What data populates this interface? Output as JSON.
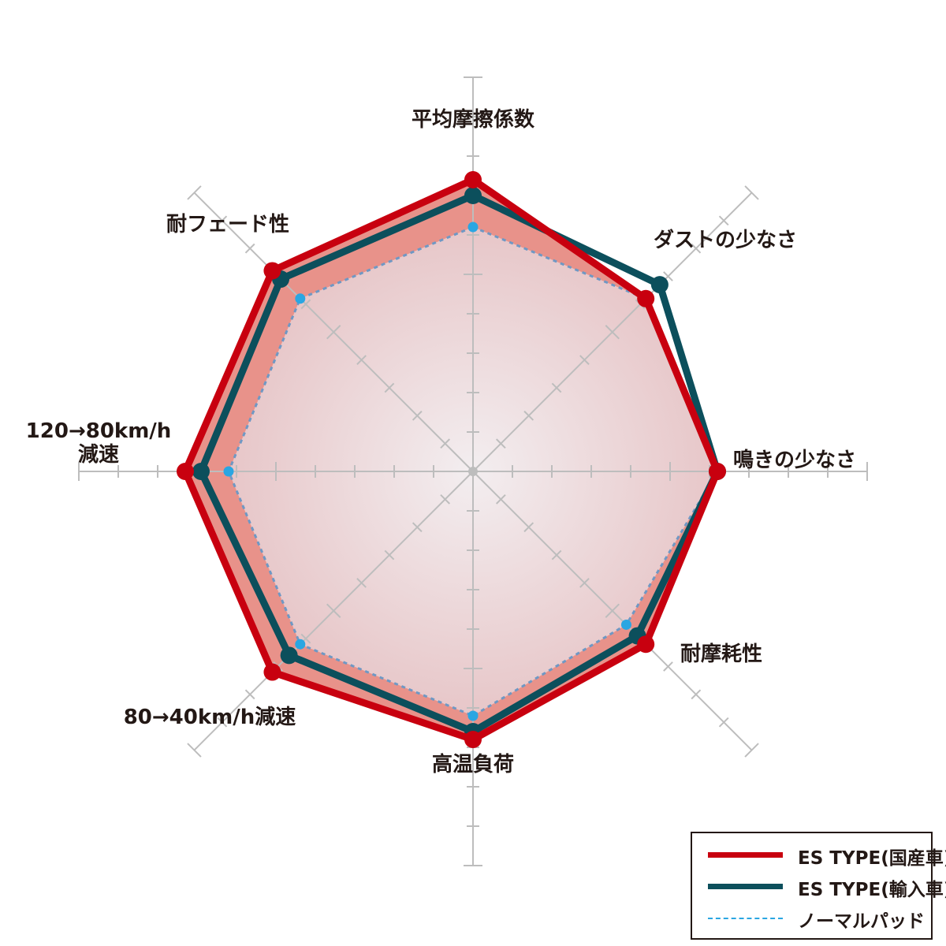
{
  "chart_data": {
    "type": "radar",
    "axes": [
      "平均摩擦係数",
      "ダストの少なさ",
      "鳴きの少なさ",
      "耐摩耗性",
      "高温負荷",
      "80→40km/h減速",
      "120→80km/h減速",
      "耐フェード性"
    ],
    "axis_labels": [
      [
        "平均摩擦係数"
      ],
      [
        "ダストの少なさ"
      ],
      [
        "鳴きの少なさ"
      ],
      [
        "耐摩耗性"
      ],
      [
        "高温負荷"
      ],
      [
        "80→40km/h減速"
      ],
      [
        "120→80km/h",
        "減速"
      ],
      [
        "耐フェード性"
      ]
    ],
    "rlim": [
      0,
      10
    ],
    "series": [
      {
        "name": "ES TYPE(国産車)",
        "color": "#c8000f",
        "style": "solid",
        "values": [
          7.4,
          6.2,
          6.2,
          6.2,
          6.8,
          7.2,
          7.3,
          7.2
        ]
      },
      {
        "name": "ES TYPE(輸入車)",
        "color": "#0c4f5c",
        "style": "solid",
        "values": [
          7.0,
          6.7,
          6.2,
          5.9,
          6.6,
          6.6,
          6.9,
          6.9
        ]
      },
      {
        "name": "ノーマルパッド",
        "color": "#2aa6e2",
        "style": "dashed",
        "values": [
          6.2,
          6.2,
          6.2,
          5.5,
          6.2,
          6.2,
          6.2,
          6.2
        ]
      }
    ],
    "fill_color": "#e8928a",
    "grid": true,
    "legend_position": "bottom-right"
  }
}
